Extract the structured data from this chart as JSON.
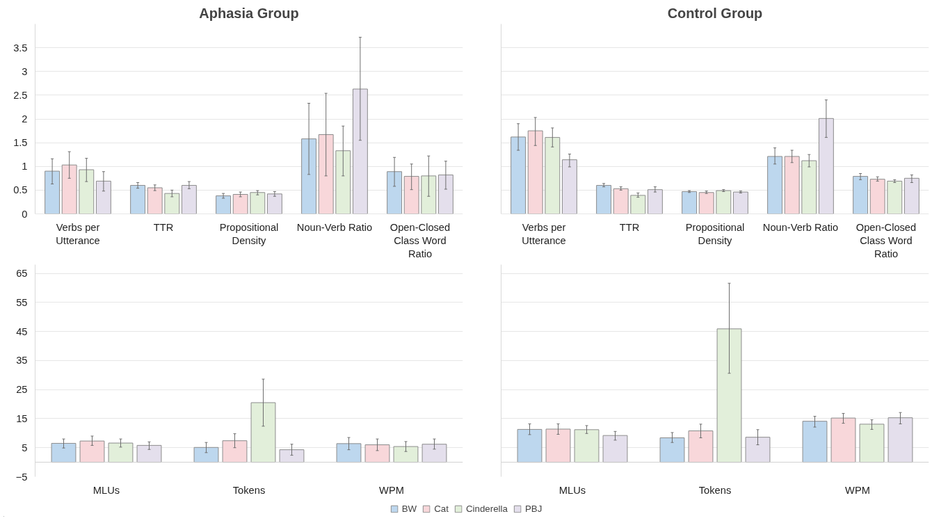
{
  "chart_data": [
    {
      "type": "bar",
      "title": "Aphasia Group",
      "categories": [
        "Verbs per Utterance",
        "TTR",
        "Propositional Density",
        "Noun-Verb Ratio",
        "Open-Closed Class Word Ratio"
      ],
      "ylim": [
        0,
        4
      ],
      "yticks": [
        0,
        0.5,
        1,
        1.5,
        2,
        2.5,
        3,
        3.5
      ],
      "grid": "y",
      "legend": "bottom",
      "series": [
        {
          "name": "BW",
          "color": "#bdd7ee",
          "values": [
            0.9,
            0.6,
            0.38,
            1.58,
            0.89
          ],
          "errors": [
            [
              0.63,
              1.16
            ],
            [
              0.54,
              0.66
            ],
            [
              0.33,
              0.43
            ],
            [
              0.83,
              2.33
            ],
            [
              0.58,
              1.19
            ]
          ]
        },
        {
          "name": "Cat",
          "color": "#f8d7da",
          "values": [
            1.03,
            0.55,
            0.41,
            1.67,
            0.79
          ],
          "errors": [
            [
              0.75,
              1.31
            ],
            [
              0.49,
              0.61
            ],
            [
              0.36,
              0.46
            ],
            [
              0.8,
              2.54
            ],
            [
              0.51,
              1.05
            ]
          ]
        },
        {
          "name": "Cinderella",
          "color": "#e2efda",
          "values": [
            0.93,
            0.43,
            0.45,
            1.33,
            0.8
          ],
          "errors": [
            [
              0.68,
              1.17
            ],
            [
              0.36,
              0.5
            ],
            [
              0.4,
              0.49
            ],
            [
              0.8,
              1.85
            ],
            [
              0.37,
              1.22
            ]
          ]
        },
        {
          "name": "PBJ",
          "color": "#e4dfec",
          "values": [
            0.69,
            0.6,
            0.42,
            2.63,
            0.82
          ],
          "errors": [
            [
              0.48,
              0.89
            ],
            [
              0.53,
              0.68
            ],
            [
              0.37,
              0.47
            ],
            [
              1.55,
              3.72
            ],
            [
              0.52,
              1.11
            ]
          ]
        }
      ]
    },
    {
      "type": "bar",
      "title": "Control Group",
      "categories": [
        "Verbs per Utterance",
        "TTR",
        "Propositional Density",
        "Noun-Verb Ratio",
        "Open-Closed Class Word Ratio"
      ],
      "ylim": [
        0,
        4
      ],
      "yticks": [
        0,
        0.5,
        1,
        1.5,
        2,
        2.5,
        3,
        3.5
      ],
      "grid": "y",
      "tick_labels": "x",
      "series": [
        {
          "color": "#bdd7ee",
          "values": [
            1.62,
            0.6,
            0.47,
            1.21,
            0.79
          ],
          "errors": [
            [
              1.34,
              1.9
            ],
            [
              0.57,
              0.64
            ],
            [
              0.45,
              0.49
            ],
            [
              1.05,
              1.39
            ],
            [
              0.72,
              0.85
            ]
          ]
        },
        {
          "color": "#f8d7da",
          "values": [
            1.75,
            0.53,
            0.45,
            1.21,
            0.73
          ],
          "errors": [
            [
              1.44,
              2.03
            ],
            [
              0.5,
              0.57
            ],
            [
              0.43,
              0.48
            ],
            [
              1.08,
              1.34
            ],
            [
              0.69,
              0.78
            ]
          ]
        },
        {
          "color": "#e2efda",
          "values": [
            1.61,
            0.39,
            0.49,
            1.12,
            0.69
          ],
          "errors": [
            [
              1.41,
              1.81
            ],
            [
              0.35,
              0.44
            ],
            [
              0.47,
              0.51
            ],
            [
              0.99,
              1.25
            ],
            [
              0.66,
              0.72
            ]
          ]
        },
        {
          "color": "#e4dfec",
          "values": [
            1.14,
            0.51,
            0.46,
            2.01,
            0.75
          ],
          "errors": [
            [
              0.99,
              1.26
            ],
            [
              0.46,
              0.57
            ],
            [
              0.44,
              0.48
            ],
            [
              1.61,
              2.4
            ],
            [
              0.66,
              0.82
            ]
          ]
        }
      ]
    },
    {
      "type": "bar",
      "categories": [
        "MLUs",
        "Tokens",
        "WPM"
      ],
      "ylim": [
        -5,
        68
      ],
      "yticks": [
        {
          "value": -5,
          "label": "−5"
        },
        5,
        15,
        25,
        35,
        45,
        55,
        65
      ],
      "grid": "y",
      "series": [
        {
          "color": "#bdd7ee",
          "values": [
            6.5,
            5.1,
            6.4
          ],
          "errors": [
            [
              4.9,
              8.0
            ],
            [
              3.3,
              6.8
            ],
            [
              4.3,
              8.5
            ]
          ]
        },
        {
          "color": "#f8d7da",
          "values": [
            7.3,
            7.4,
            6.0
          ],
          "errors": [
            [
              5.8,
              9.0
            ],
            [
              5.0,
              9.8
            ],
            [
              4.0,
              8.0
            ]
          ]
        },
        {
          "color": "#e2efda",
          "values": [
            6.6,
            20.5,
            5.4
          ],
          "errors": [
            [
              5.2,
              8.0
            ],
            [
              12.4,
              28.6
            ],
            [
              3.7,
              7.1
            ]
          ]
        },
        {
          "color": "#e4dfec",
          "values": [
            5.8,
            4.3,
            6.2
          ],
          "errors": [
            [
              4.4,
              7.0
            ],
            [
              2.4,
              6.2
            ],
            [
              4.5,
              8.0
            ]
          ]
        }
      ]
    },
    {
      "type": "bar",
      "categories": [
        "MLUs",
        "Tokens",
        "WPM"
      ],
      "ylim": [
        -5,
        68
      ],
      "yticks": [
        -5,
        5,
        15,
        25,
        35,
        45,
        55,
        65
      ],
      "grid": "y",
      "tick_labels": "x",
      "series": [
        {
          "color": "#bdd7ee",
          "values": [
            11.3,
            8.4,
            14.1
          ],
          "errors": [
            [
              9.5,
              13.2
            ],
            [
              6.8,
              10.2
            ],
            [
              12.1,
              15.8
            ]
          ]
        },
        {
          "color": "#f8d7da",
          "values": [
            11.4,
            10.8,
            15.2
          ],
          "errors": [
            [
              9.6,
              13.2
            ],
            [
              8.4,
              13.1
            ],
            [
              13.4,
              16.8
            ]
          ]
        },
        {
          "color": "#e2efda",
          "values": [
            11.2,
            45.9,
            13.1
          ],
          "errors": [
            [
              9.9,
              12.6
            ],
            [
              30.6,
              61.6
            ],
            [
              11.3,
              14.6
            ]
          ]
        },
        {
          "color": "#e4dfec",
          "values": [
            9.2,
            8.6,
            15.3
          ],
          "errors": [
            [
              7.6,
              10.6
            ],
            [
              6.0,
              11.2
            ],
            [
              13.2,
              17.1
            ]
          ]
        }
      ]
    }
  ]
}
